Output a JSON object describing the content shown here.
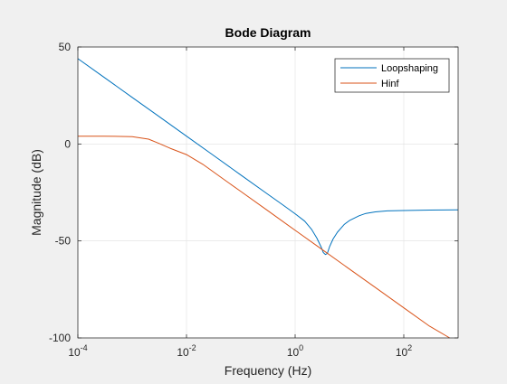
{
  "chart_data": {
    "type": "line",
    "title": "Bode Diagram",
    "xlabel": "Frequency  (Hz)",
    "ylabel": "Magnitude (dB)",
    "x_scale": "log",
    "xlim": [
      0.0001,
      1000
    ],
    "ylim": [
      -100,
      50
    ],
    "grid": true,
    "legend_position": "top-right",
    "x_ticks": [
      {
        "value": 0.0001,
        "base": "10",
        "exp": "-4"
      },
      {
        "value": 0.01,
        "base": "10",
        "exp": "-2"
      },
      {
        "value": 1,
        "base": "10",
        "exp": "0"
      },
      {
        "value": 100,
        "base": "10",
        "exp": "2"
      }
    ],
    "y_ticks": [
      {
        "value": 50,
        "label": "50"
      },
      {
        "value": 0,
        "label": "0"
      },
      {
        "value": -50,
        "label": "-50"
      },
      {
        "value": -100,
        "label": "-100"
      }
    ],
    "series": [
      {
        "name": "Loopshaping",
        "color": "#0072BD",
        "points": [
          [
            0.0001,
            44
          ],
          [
            0.0003,
            34.5
          ],
          [
            0.001,
            24
          ],
          [
            0.003,
            14.5
          ],
          [
            0.01,
            4
          ],
          [
            0.03,
            -5.5
          ],
          [
            0.1,
            -16
          ],
          [
            0.3,
            -25.5
          ],
          [
            0.6,
            -31.5
          ],
          [
            1,
            -36
          ],
          [
            1.5,
            -39.8
          ],
          [
            2,
            -44
          ],
          [
            2.5,
            -48.5
          ],
          [
            3,
            -53
          ],
          [
            3.3,
            -56
          ],
          [
            3.6,
            -57
          ],
          [
            3.9,
            -56.5
          ],
          [
            4.3,
            -53
          ],
          [
            5,
            -49
          ],
          [
            6,
            -45.5
          ],
          [
            8,
            -41.5
          ],
          [
            10,
            -39.5
          ],
          [
            15,
            -37
          ],
          [
            20,
            -35.8
          ],
          [
            30,
            -35
          ],
          [
            50,
            -34.5
          ],
          [
            100,
            -34.3
          ],
          [
            300,
            -34.1
          ],
          [
            1000,
            -34
          ]
        ]
      },
      {
        "name": "Hinf",
        "color": "#D95319",
        "points": [
          [
            0.0001,
            4
          ],
          [
            0.0003,
            4
          ],
          [
            0.001,
            3.8
          ],
          [
            0.002,
            2.5
          ],
          [
            0.003,
            0.5
          ],
          [
            0.005,
            -2.2
          ],
          [
            0.01,
            -5.5
          ],
          [
            0.02,
            -10.5
          ],
          [
            0.05,
            -18.5
          ],
          [
            0.1,
            -24.5
          ],
          [
            0.3,
            -34
          ],
          [
            1,
            -44.5
          ],
          [
            3,
            -54
          ],
          [
            10,
            -64.5
          ],
          [
            30,
            -74
          ],
          [
            100,
            -84.5
          ],
          [
            300,
            -94
          ],
          [
            700,
            -100
          ]
        ]
      }
    ]
  }
}
